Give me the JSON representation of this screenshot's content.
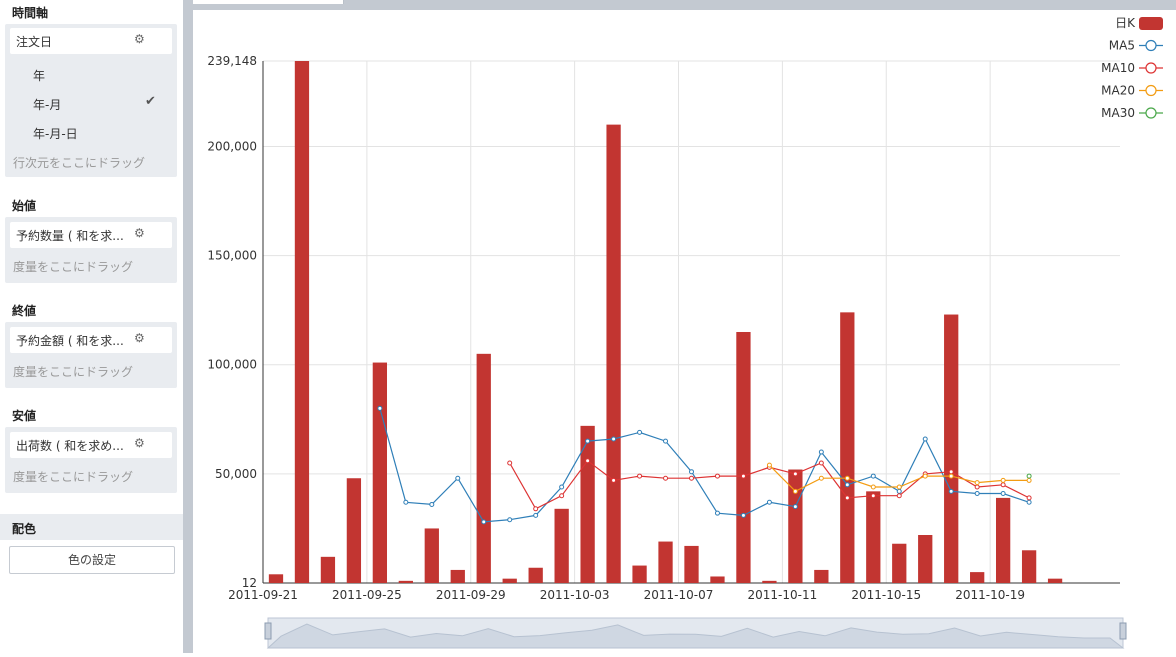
{
  "sidebar": {
    "time_axis": {
      "title": "時間軸",
      "field": "注文日",
      "options": [
        "年",
        "年-月",
        "年-月-日"
      ],
      "selected": "年-月",
      "drop_hint": "行次元をここにドラッグ"
    },
    "open": {
      "title": "始値",
      "field": "予約数量 ( 和を求...",
      "drop_hint": "度量をここにドラッグ"
    },
    "close": {
      "title": "終値",
      "field": "予約金額 ( 和を求...",
      "drop_hint": "度量をここにドラッグ"
    },
    "low": {
      "title": "安値",
      "field": "出荷数 ( 和を求め...",
      "drop_hint": "度量をここにドラッグ"
    },
    "color": {
      "title": "配色",
      "button": "色の設定"
    }
  },
  "chart_data": {
    "type": "bar",
    "y_tick_labels": [
      "12",
      "50,000",
      "100,000",
      "150,000",
      "200,000",
      "239,148"
    ],
    "ylim": [
      12,
      239148
    ],
    "x_tick_labels": [
      "2011-09-21",
      "2011-09-25",
      "2011-09-29",
      "2011-10-03",
      "2011-10-07",
      "2011-10-11",
      "2011-10-15",
      "2011-10-19"
    ],
    "categories": [
      "2011-09-21",
      "2011-09-22",
      "2011-09-23",
      "2011-09-24",
      "2011-09-25",
      "2011-09-26",
      "2011-09-27",
      "2011-09-28",
      "2011-09-29",
      "2011-09-30",
      "2011-10-01",
      "2011-10-02",
      "2011-10-03",
      "2011-10-04",
      "2011-10-05",
      "2011-10-06",
      "2011-10-07",
      "2011-10-08",
      "2011-10-09",
      "2011-10-10",
      "2011-10-11",
      "2011-10-12",
      "2011-10-13",
      "2011-10-14",
      "2011-10-15",
      "2011-10-16",
      "2011-10-17",
      "2011-10-18",
      "2011-10-19",
      "2011-10-20",
      "2011-10-21",
      "2011-10-22",
      "2011-10-23"
    ],
    "series": [
      {
        "name": "日K",
        "kind": "bar",
        "color": "#c23531",
        "values": [
          4000,
          239148,
          12000,
          48000,
          101000,
          1000,
          25000,
          6000,
          105000,
          2000,
          7000,
          34000,
          72000,
          210000,
          8000,
          19000,
          17000,
          3000,
          115000,
          1000,
          52000,
          6000,
          124000,
          42000,
          18000,
          22000,
          123000,
          5000,
          39000,
          15000,
          2000,
          null,
          null
        ]
      },
      {
        "name": "MA5",
        "kind": "line",
        "color": "#2f7fb8",
        "values": [
          null,
          null,
          null,
          null,
          80000,
          37000,
          36000,
          48000,
          28000,
          29000,
          31000,
          44000,
          65000,
          66000,
          69000,
          65000,
          51000,
          32000,
          31000,
          37000,
          35000,
          60000,
          45000,
          49000,
          42000,
          66000,
          42000,
          41000,
          41000,
          37000,
          null,
          null,
          null
        ]
      },
      {
        "name": "MA10",
        "kind": "line",
        "color": "#dd3333",
        "values": [
          null,
          null,
          null,
          null,
          null,
          null,
          null,
          null,
          null,
          55000,
          34000,
          40000,
          56000,
          47000,
          49000,
          48000,
          48000,
          49000,
          49000,
          53000,
          50000,
          55000,
          39000,
          40000,
          40000,
          50000,
          51000,
          44000,
          45000,
          39000,
          null,
          null,
          null
        ]
      },
      {
        "name": "MA20",
        "kind": "line",
        "color": "#f39c12",
        "values": [
          null,
          null,
          null,
          null,
          null,
          null,
          null,
          null,
          null,
          null,
          null,
          null,
          null,
          null,
          null,
          null,
          null,
          null,
          null,
          54000,
          42000,
          48000,
          48000,
          44000,
          44000,
          49000,
          49000,
          46000,
          47000,
          47000,
          null,
          null,
          null
        ]
      },
      {
        "name": "MA30",
        "kind": "line",
        "color": "#4aa84a",
        "values": [
          null,
          null,
          null,
          null,
          null,
          null,
          null,
          null,
          null,
          null,
          null,
          null,
          null,
          null,
          null,
          null,
          null,
          null,
          null,
          null,
          null,
          null,
          null,
          null,
          null,
          null,
          null,
          null,
          null,
          49000,
          null,
          null,
          null
        ]
      }
    ],
    "legend": [
      "日K",
      "MA5",
      "MA10",
      "MA20",
      "MA30"
    ],
    "legend_position": "top-right",
    "grid": true
  }
}
